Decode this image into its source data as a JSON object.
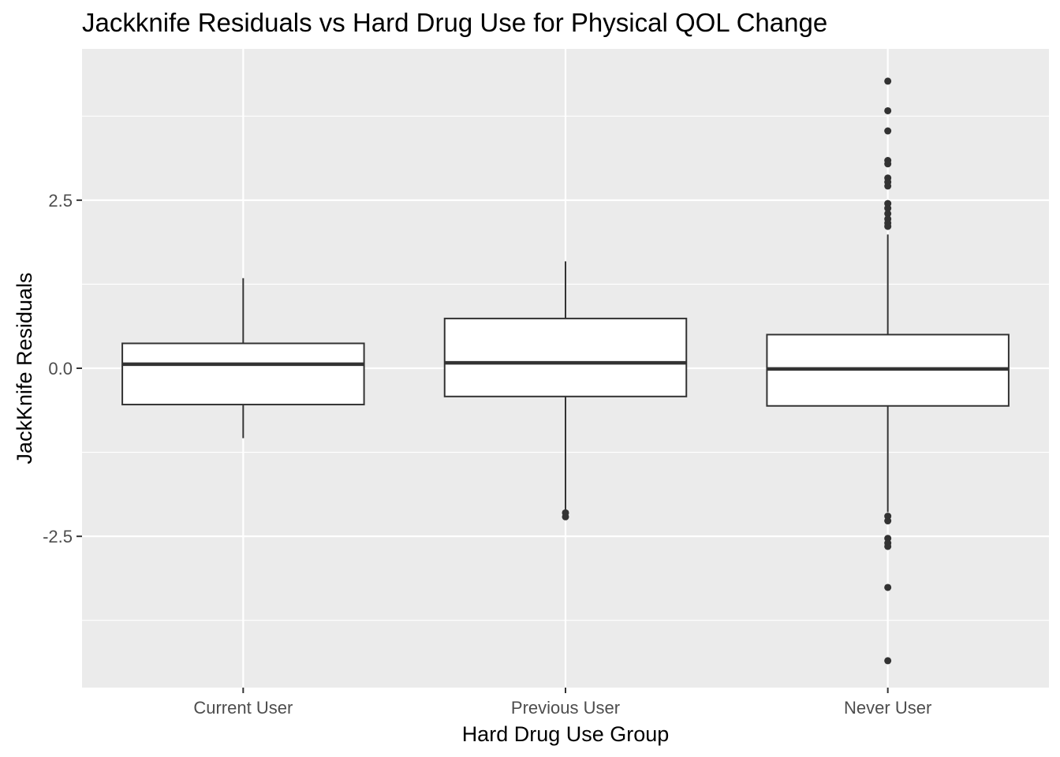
{
  "chart_data": {
    "type": "box",
    "title": "Jackknife Residuals vs Hard Drug Use for Physical QOL Change",
    "xlabel": "Hard Drug Use Group",
    "ylabel": "JackKnife Residuals",
    "categories": [
      "Current User",
      "Previous User",
      "Never User"
    ],
    "ylim": [
      -4.75,
      4.75
    ],
    "y_ticks": [
      -2.5,
      0.0,
      2.5
    ],
    "y_tick_labels": [
      "-2.5",
      "0.0",
      "2.5"
    ],
    "y_minor_ticks": [
      -3.75,
      -1.25,
      1.25,
      3.75
    ],
    "grid": true,
    "boxes": [
      {
        "category": "Current User",
        "whisker_low": -1.04,
        "q1": -0.54,
        "median": 0.06,
        "q3": 0.37,
        "whisker_high": 1.34,
        "outliers": []
      },
      {
        "category": "Previous User",
        "whisker_low": -2.12,
        "q1": -0.42,
        "median": 0.08,
        "q3": 0.74,
        "whisker_high": 1.59,
        "outliers": [
          -2.15,
          -2.21
        ]
      },
      {
        "category": "Never User",
        "whisker_low": -2.14,
        "q1": -0.56,
        "median": -0.01,
        "q3": 0.5,
        "whisker_high": 1.99,
        "outliers": [
          4.27,
          3.83,
          3.53,
          3.09,
          3.04,
          2.83,
          2.77,
          2.71,
          2.45,
          2.38,
          2.3,
          2.22,
          2.16,
          2.11,
          -2.2,
          -2.27,
          -2.53,
          -2.6,
          -2.65,
          -3.26,
          -4.35
        ]
      }
    ],
    "colors": {
      "panel_background": "#ebebeb",
      "grid_major": "#ffffff",
      "grid_minor": "#ffffff",
      "box_fill": "#ffffff",
      "box_stroke": "#333333",
      "outlier": "#333333",
      "tick_label": "#4d4d4d"
    }
  }
}
